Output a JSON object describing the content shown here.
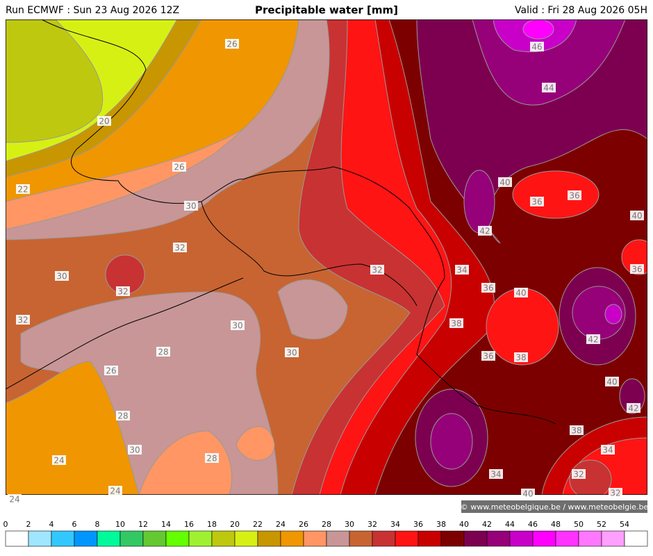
{
  "header": {
    "run": "Run ECMWF : Sun 23 Aug 2026 12Z",
    "title": "Precipitable water [mm]",
    "valid": "Valid : Fri 28 Aug 2026 05H"
  },
  "contour_labels": [
    26,
    20,
    26,
    22,
    30,
    32,
    30,
    32,
    32,
    30,
    28,
    30,
    26,
    28,
    30,
    28,
    24,
    24,
    24,
    32,
    34,
    36,
    38,
    36,
    38,
    40,
    42,
    40,
    36,
    36,
    46,
    44,
    40,
    36,
    42,
    40,
    42,
    38,
    34,
    34,
    32,
    40,
    32
  ],
  "copyright": "© www.meteobelgique.be / www.meteobelgie.be",
  "colorbar": {
    "ticks": [
      0,
      2,
      4,
      6,
      8,
      10,
      12,
      14,
      16,
      18,
      20,
      22,
      24,
      26,
      28,
      30,
      32,
      34,
      36,
      38,
      40,
      42,
      44,
      46,
      48,
      50,
      52,
      54
    ],
    "colors": [
      "#ffffff",
      "#a0e6ff",
      "#32c8ff",
      "#0096ff",
      "#00fa9a",
      "#32c864",
      "#64c832",
      "#64ff00",
      "#a0f032",
      "#bec80f",
      "#d7f014",
      "#c89600",
      "#f09600",
      "#ff9664",
      "#c89696",
      "#c86432",
      "#c83232",
      "#ff1414",
      "#c80000",
      "#7d0000",
      "#7d0050",
      "#960078",
      "#c800c8",
      "#ff00ff",
      "#ff32ff",
      "#ff78ff",
      "#ffa0ff",
      "#ffffff"
    ]
  }
}
